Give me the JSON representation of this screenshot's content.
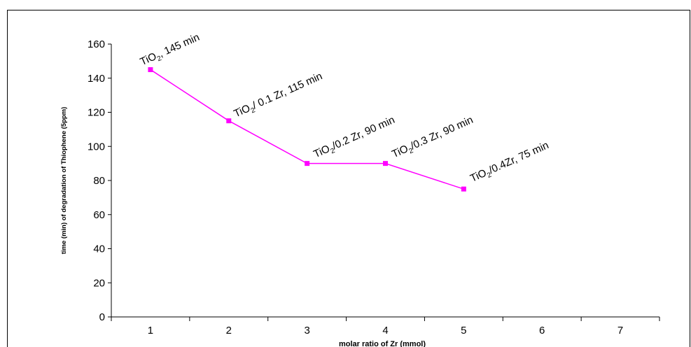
{
  "chart_data": {
    "type": "line",
    "title": "",
    "xlabel": "molar ratio of Zr (mmol)",
    "ylabel": "time (min) of degradation of Thiophene (5ppm)",
    "categories": [
      "1",
      "2",
      "3",
      "4",
      "5",
      "6",
      "7"
    ],
    "ylim": [
      0,
      160
    ],
    "yticks": [
      0,
      20,
      40,
      60,
      80,
      100,
      120,
      140,
      160
    ],
    "grid": false,
    "legend": "none",
    "series": [
      {
        "color": "#ff00ff",
        "x": [
          1,
          2,
          3,
          4,
          5
        ],
        "values": [
          145,
          115,
          90,
          90,
          75
        ]
      }
    ],
    "annotations": [
      {
        "x": 1,
        "y": 145,
        "prefix": "TiO",
        "sub": "2",
        "suffix": ", 145 min"
      },
      {
        "x": 2,
        "y": 115,
        "prefix": "TiO",
        "sub": "2",
        "suffix": "/ 0.1 Zr, 115 min"
      },
      {
        "x": 3,
        "y": 90,
        "prefix": "TiO",
        "sub": "2",
        "suffix": "/0.2 Zr, 90 min"
      },
      {
        "x": 4,
        "y": 90,
        "prefix": "TiO",
        "sub": "2",
        "suffix": "/0.3 Zr, 90 min"
      },
      {
        "x": 5,
        "y": 75,
        "prefix": "TiO",
        "sub": "2",
        "suffix": "/0.4Zr, 75 min"
      }
    ]
  }
}
